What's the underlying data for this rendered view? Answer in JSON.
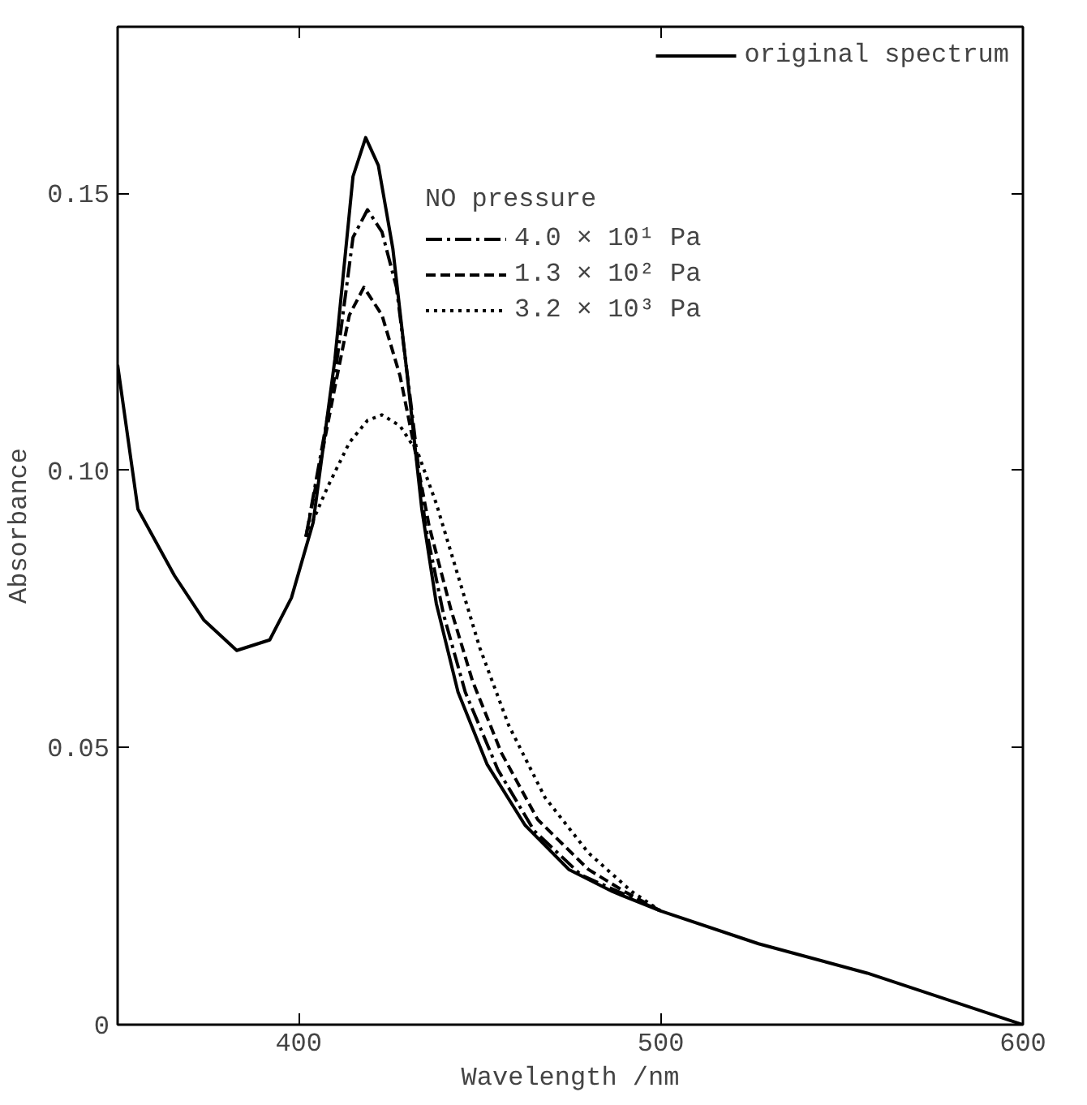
{
  "chart_data": {
    "type": "line",
    "xlabel": "Wavelength /nm",
    "ylabel": "Absorbance",
    "legend_title": "NO pressure",
    "legend": "top right",
    "grid": false,
    "xlim": [
      350,
      600
    ],
    "xticks": [
      400,
      500,
      600
    ],
    "ylim": [
      0,
      0.18
    ],
    "yticks": [
      {
        "value": 0,
        "label": "0"
      },
      0.05,
      {
        "value": 0.1,
        "label": "0.10"
      },
      0.15
    ],
    "series": [
      {
        "name": "original spectrum",
        "color": "#000000",
        "line_style": "solid",
        "x": [
          350,
          355.6,
          365.7,
          373.8,
          382.9,
          392,
          398,
          404,
          410,
          415,
          418.5,
          422,
          426,
          430,
          434,
          438,
          444,
          452,
          462.5,
          474.6,
          486.7,
          500,
          527,
          557,
          600
        ],
        "values": [
          0.119,
          0.093,
          0.081,
          0.073,
          0.0675,
          0.0694,
          0.077,
          0.0906,
          0.12,
          0.153,
          0.16,
          0.155,
          0.14,
          0.117,
          0.093,
          0.076,
          0.06,
          0.047,
          0.036,
          0.028,
          0.024,
          0.0205,
          0.0146,
          0.0093,
          0
        ]
      },
      {
        "name": "4.0 × 10¹ Pa",
        "color": "#000000",
        "line_style": "dashdot",
        "x": [
          402,
          410,
          415,
          419,
          423,
          427,
          431,
          435,
          440,
          446,
          455,
          465,
          478,
          490,
          500
        ],
        "values": [
          0.088,
          0.117,
          0.142,
          0.147,
          0.143,
          0.133,
          0.112,
          0.09,
          0.074,
          0.06,
          0.046,
          0.035,
          0.027,
          0.0235,
          0.0205
        ]
      },
      {
        "name": "1.3 × 10² Pa",
        "color": "#000000",
        "line_style": "dashed",
        "x": [
          402,
          410,
          414,
          418,
          423,
          428,
          432,
          436,
          442,
          448,
          456,
          466,
          480,
          490,
          500
        ],
        "values": [
          0.088,
          0.115,
          0.128,
          0.133,
          0.128,
          0.117,
          0.104,
          0.09,
          0.075,
          0.062,
          0.049,
          0.037,
          0.028,
          0.024,
          0.0205
        ]
      },
      {
        "name": "3.2 × 10³ Pa",
        "color": "#000000",
        "line_style": "dotted",
        "x": [
          402,
          408,
          414,
          419,
          423,
          428,
          433,
          438,
          444,
          450,
          458,
          468,
          480,
          492,
          500
        ],
        "values": [
          0.088,
          0.097,
          0.105,
          0.109,
          0.11,
          0.108,
          0.103,
          0.094,
          0.081,
          0.068,
          0.054,
          0.041,
          0.031,
          0.024,
          0.0205
        ]
      }
    ]
  }
}
